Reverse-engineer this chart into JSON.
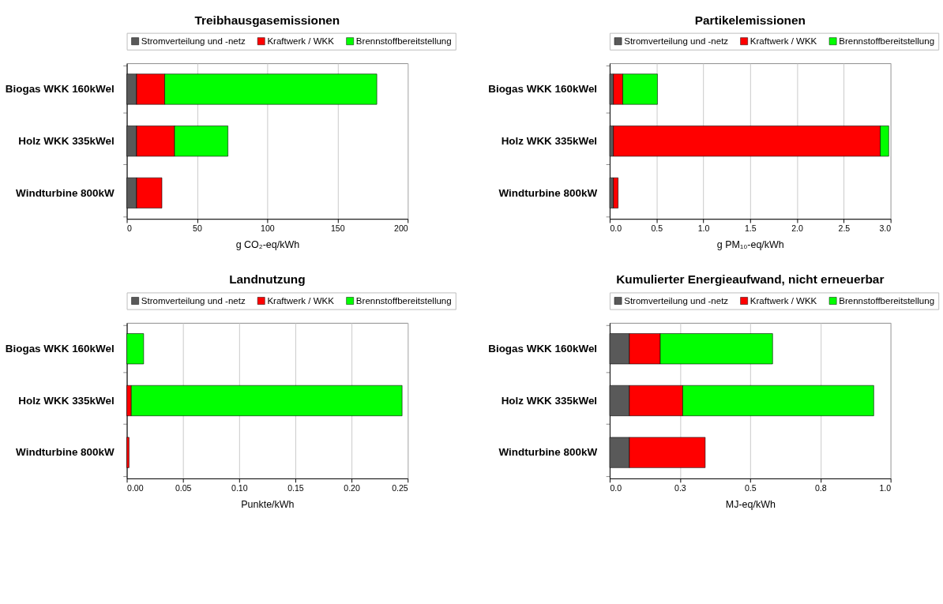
{
  "chart_data": [
    {
      "type": "bar",
      "orientation": "horizontal",
      "stacked": true,
      "title": "Treibhausgasemissionen",
      "xlabel": "g CO₂-eq/kWh",
      "categories": [
        "Biogas WKK 160kWel",
        "Holz WKK 335kWel",
        "Windturbine 800kW"
      ],
      "xlim": [
        0,
        200
      ],
      "xticks": [
        0,
        50,
        100,
        150,
        200
      ],
      "grid": "x",
      "legend": "top",
      "series": [
        {
          "name": "Stromverteilung und -netz",
          "color": "#595959",
          "values": [
            7,
            7,
            7
          ]
        },
        {
          "name": "Kraftwerk / WKK",
          "color": "#ff0000",
          "values": [
            20,
            27,
            18
          ]
        },
        {
          "name": "Brennstoffbereitstellung",
          "color": "#00ff00",
          "values": [
            151,
            38,
            null
          ]
        }
      ]
    },
    {
      "type": "bar",
      "orientation": "horizontal",
      "stacked": true,
      "title": "Partikelemissionen",
      "xlabel": "g PM₁₀-eq/kWh",
      "categories": [
        "Biogas WKK 160kWel",
        "Holz WKK 335kWel",
        "Windturbine 800kW"
      ],
      "xlim": [
        0,
        3.0
      ],
      "xticks": [
        {
          "value": 0,
          "label": "0.0"
        },
        0.5,
        {
          "value": 1,
          "label": "1.0"
        },
        1.5,
        {
          "value": 2,
          "label": "2.0"
        },
        2.5,
        {
          "value": 3,
          "label": "3.0"
        }
      ],
      "grid": "x",
      "legend": "top",
      "series": [
        {
          "name": "Stromverteilung und -netz",
          "color": "#595959",
          "values": [
            0.04,
            0.04,
            0.04
          ]
        },
        {
          "name": "Kraftwerk / WKK",
          "color": "#ff0000",
          "values": [
            0.1,
            2.85,
            0.05
          ]
        },
        {
          "name": "Brennstoffbereitstellung",
          "color": "#00ff00",
          "values": [
            0.37,
            0.09,
            null
          ]
        }
      ]
    },
    {
      "type": "bar",
      "orientation": "horizontal",
      "stacked": true,
      "title": "Landnutzung",
      "xlabel": "Punkte/kWh",
      "categories": [
        "Biogas WKK 160kWel",
        "Holz WKK 335kWel",
        "Windturbine 800kW"
      ],
      "xlim": [
        0,
        0.25
      ],
      "xticks": [
        {
          "value": 0,
          "label": "0.00"
        },
        0.05,
        {
          "value": 0.1,
          "label": "0.10"
        },
        0.15,
        {
          "value": 0.2,
          "label": "0.20"
        },
        0.25
      ],
      "grid": "x",
      "legend": "top",
      "series": [
        {
          "name": "Stromverteilung und -netz",
          "color": "#595959",
          "values": [
            null,
            null,
            null
          ]
        },
        {
          "name": "Kraftwerk / WKK",
          "color": "#ff0000",
          "values": [
            null,
            0.004,
            0.002
          ]
        },
        {
          "name": "Brennstoffbereitstellung",
          "color": "#00ff00",
          "values": [
            0.015,
            0.241,
            null
          ]
        }
      ]
    },
    {
      "type": "bar",
      "orientation": "horizontal",
      "stacked": true,
      "title": "Kumulierter Energieaufwand, nicht erneuerbar",
      "xlabel": "MJ-eq/kWh",
      "categories": [
        "Biogas WKK 160kWel",
        "Holz WKK 335kWel",
        "Windturbine 800kW"
      ],
      "xlim": [
        0,
        1.0
      ],
      "xticks": [
        {
          "value": 0,
          "label": "0.0"
        },
        {
          "value": 0.25,
          "label": "0.3"
        },
        0.5,
        {
          "value": 0.75,
          "label": "0.8"
        },
        {
          "value": 1,
          "label": "1.0"
        }
      ],
      "grid": "x",
      "legend": "top",
      "series": [
        {
          "name": "Stromverteilung und -netz",
          "color": "#595959",
          "values": [
            0.07,
            0.07,
            0.07
          ]
        },
        {
          "name": "Kraftwerk / WKK",
          "color": "#ff0000",
          "values": [
            0.11,
            0.19,
            0.27
          ]
        },
        {
          "name": "Brennstoffbereitstellung",
          "color": "#00ff00",
          "values": [
            0.4,
            0.68,
            null
          ]
        }
      ]
    }
  ]
}
